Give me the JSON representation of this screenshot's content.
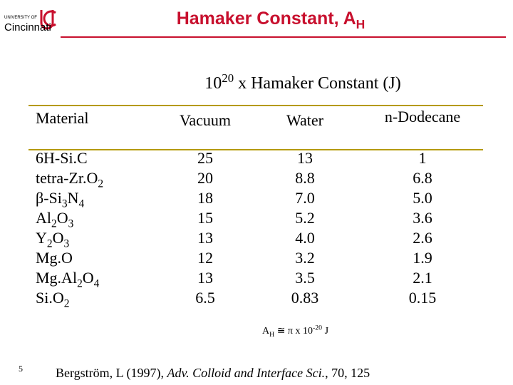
{
  "logo": {
    "line1": "UNIVERSITY OF",
    "line2": "Cincinnati"
  },
  "header": {
    "title": [
      {
        "text": "Hamaker Constant, A"
      },
      {
        "sub": "H"
      }
    ]
  },
  "table": {
    "caption": [
      {
        "text": "10"
      },
      {
        "sup": "20"
      },
      {
        "text": " x Hamaker Constant (J)"
      }
    ],
    "columns": [
      "Material",
      "Vacuum",
      "Water",
      "n-Dodecane"
    ],
    "rows": [
      [
        [
          {
            "text": "6H-Si.C"
          }
        ],
        "25",
        "13",
        "1"
      ],
      [
        [
          {
            "text": "tetra-Zr.O"
          },
          {
            "sub": "2"
          }
        ],
        "20",
        "8.8",
        "6.8"
      ],
      [
        [
          {
            "text": "β-Si"
          },
          {
            "sub": "3"
          },
          {
            "text": "N"
          },
          {
            "sub": "4"
          }
        ],
        "18",
        "7.0",
        "5.0"
      ],
      [
        [
          {
            "text": "Al"
          },
          {
            "sub": "2"
          },
          {
            "text": "O"
          },
          {
            "sub": "3"
          }
        ],
        "15",
        "5.2",
        "3.6"
      ],
      [
        [
          {
            "text": "Y"
          },
          {
            "sub": "2"
          },
          {
            "text": "O"
          },
          {
            "sub": "3"
          }
        ],
        "13",
        "4.0",
        "2.6"
      ],
      [
        [
          {
            "text": "Mg.O"
          }
        ],
        "12",
        "3.2",
        "1.9"
      ],
      [
        [
          {
            "text": "Mg.Al"
          },
          {
            "sub": "2"
          },
          {
            "text": "O"
          },
          {
            "sub": "4"
          }
        ],
        "13",
        "3.5",
        "2.1"
      ],
      [
        [
          {
            "text": "Si.O"
          },
          {
            "sub": "2"
          }
        ],
        "6.5",
        "0.83",
        "0.15"
      ]
    ]
  },
  "note": [
    {
      "text": "A"
    },
    {
      "sub": "H"
    },
    {
      "text": " ≅ π x 10"
    },
    {
      "sup": "-20"
    },
    {
      "text": " J"
    }
  ],
  "page_number": "5",
  "citation": [
    {
      "text": "Bergström, L (1997), "
    },
    {
      "italic": "Adv. Colloid and Interface Sci."
    },
    {
      "text": ", 70, 125"
    }
  ]
}
